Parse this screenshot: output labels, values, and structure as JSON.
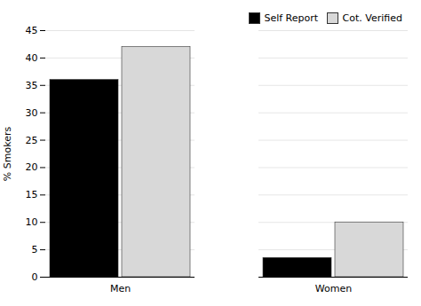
{
  "chart_data": {
    "type": "bar",
    "categories": [
      "Men",
      "Women"
    ],
    "series": [
      {
        "name": "Self Report",
        "color": "#000000",
        "values": [
          36,
          3.5
        ]
      },
      {
        "name": "Cot. Verified",
        "color": "#d8d8d8",
        "values": [
          42,
          10
        ]
      }
    ],
    "ylabel": "% Smokers",
    "ylim": [
      0,
      45
    ],
    "yticks": [
      0,
      5,
      10,
      15,
      20,
      25,
      30,
      35,
      40,
      45
    ],
    "grid": true,
    "legend": "upper right"
  }
}
